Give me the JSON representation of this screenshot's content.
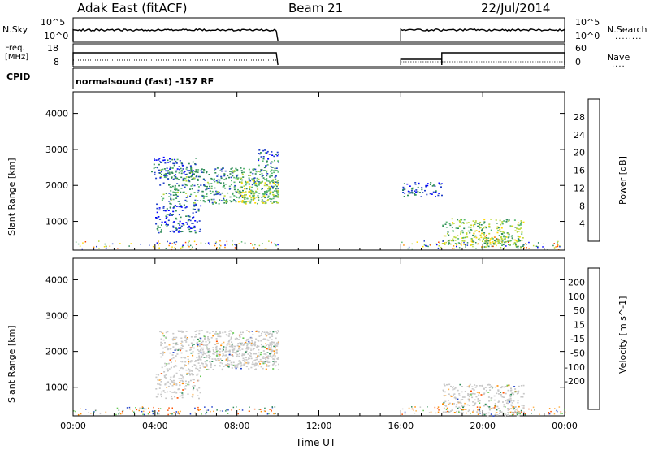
{
  "header": {
    "station": "Adak East (fitACF)",
    "beam": "Beam 21",
    "date": "22/Jul/2014"
  },
  "strip_labels": {
    "nsky": "N.Sky",
    "nsky_ticks": [
      "10^5",
      "10^0"
    ],
    "nsearch": "N.Search",
    "nsearch_ticks": [
      "10^5",
      "10^0"
    ],
    "freq_line1": "Freq.",
    "freq_line2": "[MHz]",
    "freq_ticks": [
      "18",
      "8"
    ],
    "nave": "Nave",
    "nave_ticks": [
      "60",
      "0"
    ],
    "cpid": "CPID",
    "mode": "normalsound (fast) -157 RF"
  },
  "colors": {
    "power_scale": [
      "#0000ff",
      "#1f3fc8",
      "#2e8b57",
      "#58b870",
      "#b8d838",
      "#ffd700",
      "#ff8c00",
      "#ff4500",
      "#ff0000"
    ],
    "velocity_scale": [
      "#ff0000",
      "#ff5000",
      "#ff8c00",
      "#ffb450",
      "#c8c8c8",
      "#c8c8c8",
      "#64c850",
      "#2e8b57",
      "#1f3fc8",
      "#0000ff"
    ],
    "ground_scatter": "#c8c8c8"
  },
  "chart_data": [
    {
      "type": "heatmap",
      "name": "power",
      "ylabel": "Slant Range [km]",
      "xlabel": "Time UT",
      "x_ticks": [
        "00:00",
        "04:00",
        "08:00",
        "12:00",
        "16:00",
        "20:00",
        "00:00"
      ],
      "xlim_hours": [
        0,
        24
      ],
      "y_ticks": [
        1000,
        2000,
        3000,
        4000
      ],
      "ylim_km": [
        200,
        4600
      ],
      "colorbar_label": "Power [dB]",
      "colorbar_ticks": [
        4,
        8,
        12,
        16,
        20,
        24,
        28
      ],
      "colorbar_range": [
        0,
        32
      ],
      "data_gap_hours": [
        10,
        16
      ],
      "echo_regions": [
        {
          "t": [
            4.2,
            10.0
          ],
          "r": [
            1500,
            2500
          ],
          "value": 10
        },
        {
          "t": [
            8.0,
            10.0
          ],
          "r": [
            1500,
            2200
          ],
          "value": 16
        },
        {
          "t": [
            3.8,
            6.0
          ],
          "r": [
            2200,
            2800
          ],
          "value": 6
        },
        {
          "t": [
            9.0,
            10.0
          ],
          "r": [
            2400,
            3000
          ],
          "value": 8
        },
        {
          "t": [
            4.0,
            6.2
          ],
          "r": [
            700,
            1500
          ],
          "value": 6
        },
        {
          "t": [
            16.0,
            18.0
          ],
          "r": [
            1700,
            2100
          ],
          "value": 6
        },
        {
          "t": [
            18.0,
            22.0
          ],
          "r": [
            350,
            1100
          ],
          "value": 14
        },
        {
          "t": [
            19.5,
            21.0
          ],
          "r": [
            400,
            750
          ],
          "value": 20
        },
        {
          "t": [
            20.0,
            22.0
          ],
          "r": [
            300,
            600
          ],
          "value": 12
        }
      ]
    },
    {
      "type": "heatmap",
      "name": "velocity",
      "ylabel": "Slant Range [km]",
      "xlabel": "Time UT",
      "x_ticks": [
        "00:00",
        "04:00",
        "08:00",
        "12:00",
        "16:00",
        "20:00",
        "00:00"
      ],
      "xlim_hours": [
        0,
        24
      ],
      "y_ticks": [
        1000,
        2000,
        3000,
        4000
      ],
      "ylim_km": [
        200,
        4600
      ],
      "colorbar_label": "Velocity [m s^-1]",
      "colorbar_ticks": [
        200,
        100,
        50,
        15,
        -15,
        -50,
        -100,
        -200
      ],
      "data_gap_hours": [
        10,
        16
      ],
      "echo_regions": [
        {
          "t": [
            4.2,
            10.0
          ],
          "r": [
            1500,
            2600
          ],
          "value": 0
        },
        {
          "t": [
            6.0,
            10.0
          ],
          "r": [
            1600,
            2300
          ],
          "value": 0
        },
        {
          "t": [
            18.0,
            22.0
          ],
          "r": [
            300,
            1100
          ],
          "value": 0
        },
        {
          "t": [
            20.0,
            22.0
          ],
          "r": [
            200,
            350
          ],
          "value": 40
        },
        {
          "t": [
            4.0,
            6.2
          ],
          "r": [
            700,
            1500
          ],
          "value": -30
        }
      ]
    }
  ]
}
